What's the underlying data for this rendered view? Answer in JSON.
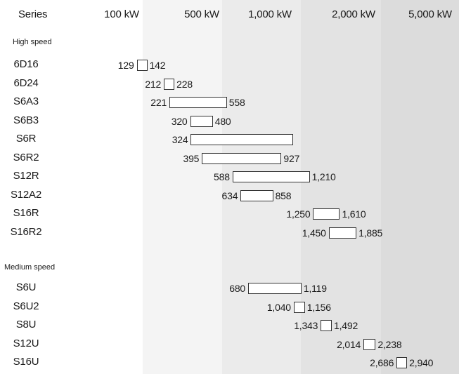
{
  "chart_data": {
    "type": "range-bar",
    "header": {
      "series_label": "Series",
      "ticks": [
        "100 kW",
        "500 kW",
        "1,000 kW",
        "2,000 kW",
        "5,000 kW"
      ]
    },
    "band_colors": [
      "#ffffff",
      "#f4f4f4",
      "#ebebeb",
      "#e3e3e3",
      "#dcdcdc"
    ],
    "groups": [
      {
        "label": "High speed",
        "rows": [
          {
            "series": "6D16",
            "min": 129,
            "max": 142,
            "min_label": "129",
            "max_label": "142"
          },
          {
            "series": "6D24",
            "min": 212,
            "max": 228,
            "min_label": "212",
            "max_label": "228"
          },
          {
            "series": "S6A3",
            "min": 221,
            "max": 558,
            "min_label": "221",
            "max_label": "558"
          },
          {
            "series": "S6B3",
            "min": 320,
            "max": 480,
            "min_label": "320",
            "max_label": "480"
          },
          {
            "series": "S6R",
            "min": 324,
            "max": 1034,
            "min_label": "324",
            "max_label": ""
          },
          {
            "series": "S6R2",
            "min": 395,
            "max": 927,
            "min_label": "395",
            "max_label": "927"
          },
          {
            "series": "S12R",
            "min": 588,
            "max": 1210,
            "min_label": "588",
            "max_label": "1,210"
          },
          {
            "series": "S12A2",
            "min": 634,
            "max": 858,
            "min_label": "634",
            "max_label": "858"
          },
          {
            "series": "S16R",
            "min": 1250,
            "max": 1610,
            "min_label": "1,250",
            "max_label": "1,610"
          },
          {
            "series": "S16R2",
            "min": 1450,
            "max": 1885,
            "min_label": "1,450",
            "max_label": "1,885"
          }
        ]
      },
      {
        "label": "Medium speed",
        "rows": [
          {
            "series": "S6U",
            "min": 680,
            "max": 1119,
            "min_label": "680",
            "max_label": "1,119"
          },
          {
            "series": "S6U2",
            "min": 1040,
            "max": 1156,
            "min_label": "1,040",
            "max_label": "1,156"
          },
          {
            "series": "S8U",
            "min": 1343,
            "max": 1492,
            "min_label": "1,343",
            "max_label": "1,492"
          },
          {
            "series": "S12U",
            "min": 2014,
            "max": 2238,
            "min_label": "2,014",
            "max_label": "2,238"
          },
          {
            "series": "S16U",
            "min": 2686,
            "max": 2940,
            "min_label": "2,686",
            "max_label": "2,940"
          }
        ]
      }
    ]
  }
}
